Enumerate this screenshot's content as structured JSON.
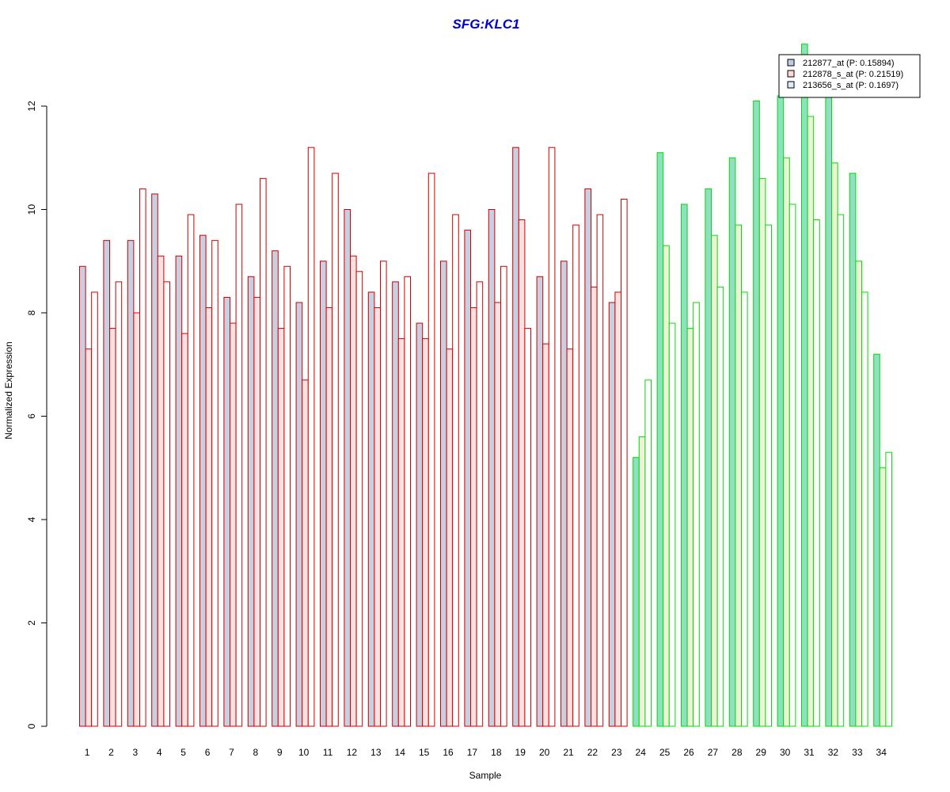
{
  "chart_data": {
    "type": "bar",
    "title": "SFG:KLC1",
    "xlabel": "Sample",
    "ylabel": "Normalized Expression",
    "ylim": [
      0,
      13.2
    ],
    "yticks": [
      0,
      2,
      4,
      6,
      8,
      10,
      12
    ],
    "grid": false,
    "legend_position": "top-right",
    "categories": [
      "1",
      "2",
      "3",
      "4",
      "5",
      "6",
      "7",
      "8",
      "9",
      "10",
      "11",
      "12",
      "13",
      "14",
      "15",
      "16",
      "17",
      "18",
      "19",
      "20",
      "21",
      "22",
      "23",
      "24",
      "25",
      "26",
      "27",
      "28",
      "29",
      "30",
      "31",
      "32",
      "33",
      "34"
    ],
    "groups": [
      {
        "samples": "1-23",
        "outline_color": "#cc0000"
      },
      {
        "samples": "24-34",
        "outline_color": "#00dd00"
      }
    ],
    "series": [
      {
        "name": "212877_at (P: 0.15894)",
        "legend_color": "#b8cfe4",
        "fill_group1": "#c7cfe0",
        "fill_group2": "#8fe0c3",
        "values": [
          8.9,
          9.4,
          9.4,
          10.3,
          9.1,
          9.5,
          8.3,
          8.7,
          9.2,
          8.2,
          9.0,
          10.0,
          8.4,
          8.6,
          7.8,
          9.0,
          9.6,
          10.0,
          11.2,
          8.7,
          9.0,
          10.4,
          8.2,
          5.2,
          11.1,
          10.1,
          10.4,
          11.0,
          12.1,
          12.2,
          13.2,
          12.2,
          10.7,
          7.2
        ]
      },
      {
        "name": "212878_s_at (P: 0.21519)",
        "legend_color": "#fdd8d6",
        "fill_group1": "#fde0e0",
        "fill_group2": "#eef2d6",
        "values": [
          7.3,
          7.7,
          8.0,
          9.1,
          7.6,
          8.1,
          7.8,
          8.3,
          7.7,
          6.7,
          8.1,
          9.1,
          8.1,
          7.5,
          7.5,
          7.3,
          8.1,
          8.2,
          9.8,
          7.4,
          7.3,
          8.5,
          8.4,
          5.6,
          9.3,
          7.7,
          9.5,
          9.7,
          10.6,
          11.0,
          11.8,
          10.9,
          9.0,
          5.0
        ]
      },
      {
        "name": "213656_s_at (P: 0.1697)",
        "legend_color": "#dcecf6",
        "fill_group1": "#ffffff",
        "fill_group2": "#ffffff",
        "values": [
          8.4,
          8.6,
          10.4,
          8.6,
          9.9,
          9.4,
          10.1,
          10.6,
          8.9,
          11.2,
          10.7,
          8.8,
          9.0,
          8.7,
          10.7,
          9.9,
          8.6,
          8.9,
          7.7,
          11.2,
          9.7,
          9.9,
          10.2,
          6.7,
          7.8,
          8.2,
          8.5,
          8.4,
          9.7,
          10.1,
          9.8,
          9.9,
          8.4,
          5.3
        ]
      }
    ],
    "title_color": "#0000cc"
  }
}
